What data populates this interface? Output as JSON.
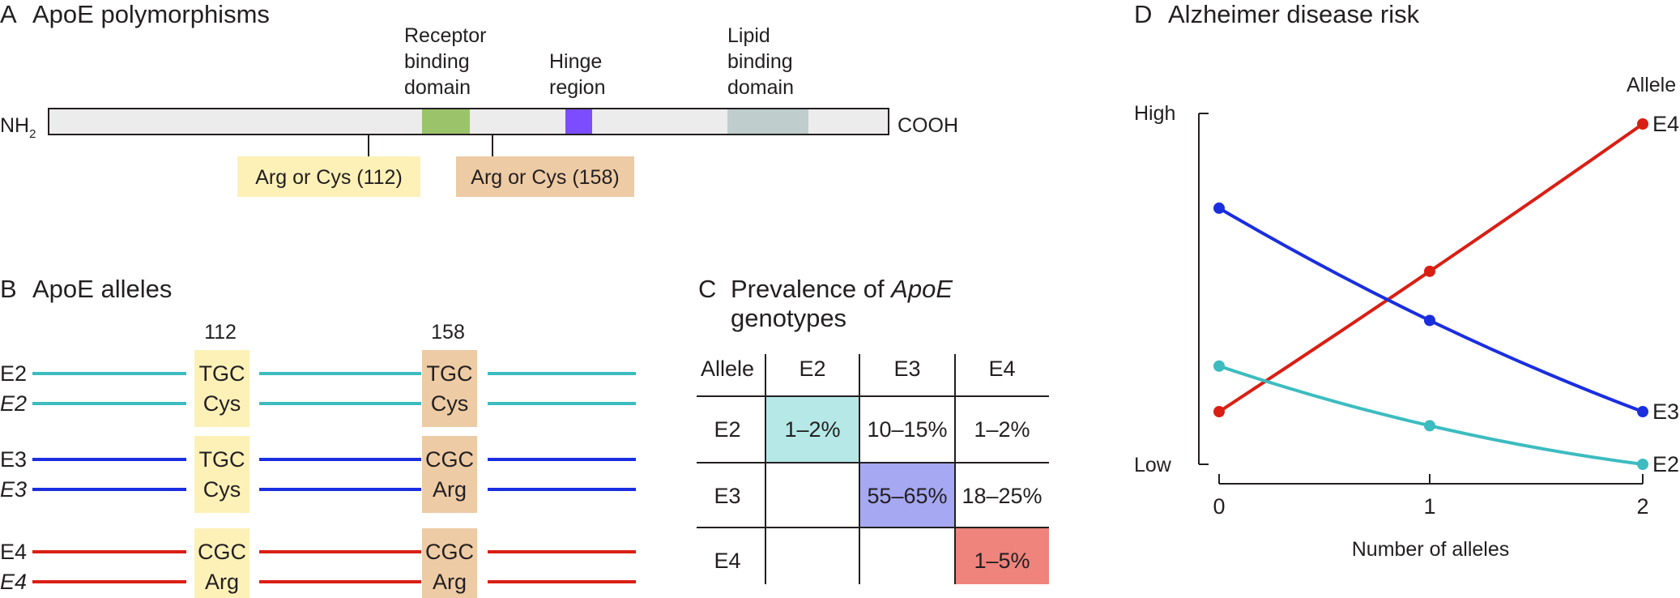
{
  "panel_a": {
    "letter": "A",
    "title": "ApoE polymorphisms",
    "nh2": "NH",
    "nh2_sub": "2",
    "cooh": "COOH",
    "receptor_label": [
      "Receptor",
      "binding",
      "domain"
    ],
    "hinge_label": [
      "Hinge",
      "region"
    ],
    "lipid_label": [
      "Lipid",
      "binding",
      "domain"
    ],
    "site_112": "Arg or Cys (112)",
    "site_158": "Arg or Cys (158)",
    "colors": {
      "protein": "#ececec",
      "receptor": "#9bc46a",
      "hinge": "#7c4dff",
      "lipid": "#bfcdcc",
      "site_112": "#fdf1b8",
      "site_158": "#edcba5"
    }
  },
  "panel_b": {
    "letter": "B",
    "title": "ApoE alleles",
    "pos_112": "112",
    "pos_158": "158",
    "alleles": [
      {
        "label": "E2",
        "label_italic": "E2",
        "codon_112": "TGC",
        "aa_112": "Cys",
        "codon_158": "TGC",
        "aa_158": "Cys",
        "color": "#3cbcc0"
      },
      {
        "label": "E3",
        "label_italic": "E3",
        "codon_112": "TGC",
        "aa_112": "Cys",
        "codon_158": "CGC",
        "aa_158": "Arg",
        "color": "#1a2ee0"
      },
      {
        "label": "E4",
        "label_italic": "E4",
        "codon_112": "CGC",
        "aa_112": "Arg",
        "codon_158": "CGC",
        "aa_158": "Arg",
        "color": "#d91f14"
      }
    ]
  },
  "panel_c": {
    "letter": "C",
    "title_1": "Prevalence of ",
    "title_italic": "ApoE",
    "title_2": "genotypes",
    "corner": "Allele",
    "columns": [
      "E2",
      "E3",
      "E4"
    ],
    "rows": [
      {
        "label": "E2",
        "cells": [
          "1–2%",
          "10–15%",
          "1–2%"
        ]
      },
      {
        "label": "E3",
        "cells": [
          "",
          "55–65%",
          "18–25%"
        ]
      },
      {
        "label": "E4",
        "cells": [
          "",
          "",
          "1–5%"
        ]
      }
    ],
    "highlight_colors": {
      "E2": "#b5e8e6",
      "E3": "#a6a8f2",
      "E4": "#ee847c"
    }
  },
  "panel_d": {
    "letter": "D",
    "title": "Alzheimer disease risk",
    "legend_title": "Allele",
    "y_high": "High",
    "y_low": "Low",
    "xlabel": "Number of alleles",
    "x_ticks": [
      "0",
      "1",
      "2"
    ]
  },
  "chart_data": {
    "type": "line",
    "title": "Alzheimer disease risk",
    "xlabel": "Number of alleles",
    "ylabel": "",
    "x": [
      0,
      1,
      2
    ],
    "ylim": [
      0,
      1
    ],
    "y_tick_labels": [
      "Low",
      "High"
    ],
    "grid": false,
    "series": [
      {
        "name": "E4",
        "color": "#d91f14",
        "values": [
          0.15,
          0.55,
          0.97
        ]
      },
      {
        "name": "E3",
        "color": "#1a2ee0",
        "values": [
          0.73,
          0.41,
          0.15
        ]
      },
      {
        "name": "E2",
        "color": "#3cbcc0",
        "values": [
          0.28,
          0.11,
          0.0
        ]
      }
    ]
  }
}
